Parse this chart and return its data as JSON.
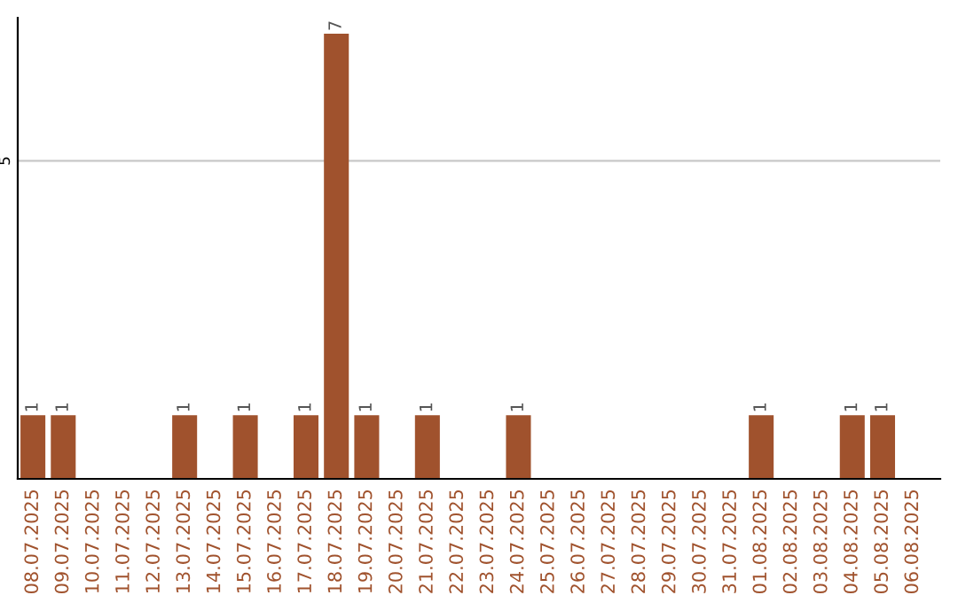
{
  "chart_data": {
    "type": "bar",
    "categories": [
      "08.07.2025",
      "09.07.2025",
      "10.07.2025",
      "11.07.2025",
      "12.07.2025",
      "13.07.2025",
      "14.07.2025",
      "15.07.2025",
      "16.07.2025",
      "17.07.2025",
      "18.07.2025",
      "19.07.2025",
      "20.07.2025",
      "21.07.2025",
      "22.07.2025",
      "23.07.2025",
      "24.07.2025",
      "25.07.2025",
      "26.07.2025",
      "27.07.2025",
      "28.07.2025",
      "29.07.2025",
      "30.07.2025",
      "31.07.2025",
      "01.08.2025",
      "02.08.2025",
      "03.08.2025",
      "04.08.2025",
      "05.08.2025",
      "06.08.2025"
    ],
    "values": [
      1,
      1,
      0,
      0,
      0,
      1,
      0,
      1,
      0,
      1,
      7,
      1,
      0,
      1,
      0,
      0,
      1,
      0,
      0,
      0,
      0,
      0,
      0,
      0,
      1,
      0,
      0,
      1,
      1,
      0
    ],
    "value_labels": [
      "1",
      "1",
      null,
      null,
      null,
      "1",
      null,
      "1",
      null,
      "1",
      "7",
      "1",
      null,
      "1",
      null,
      null,
      "1",
      null,
      null,
      null,
      null,
      null,
      null,
      null,
      "1",
      null,
      null,
      "1",
      "1",
      null
    ],
    "color": "#a0522d",
    "ylim": [
      0,
      7.25
    ],
    "yticks": [
      5
    ],
    "grid": "y",
    "legend": false
  }
}
